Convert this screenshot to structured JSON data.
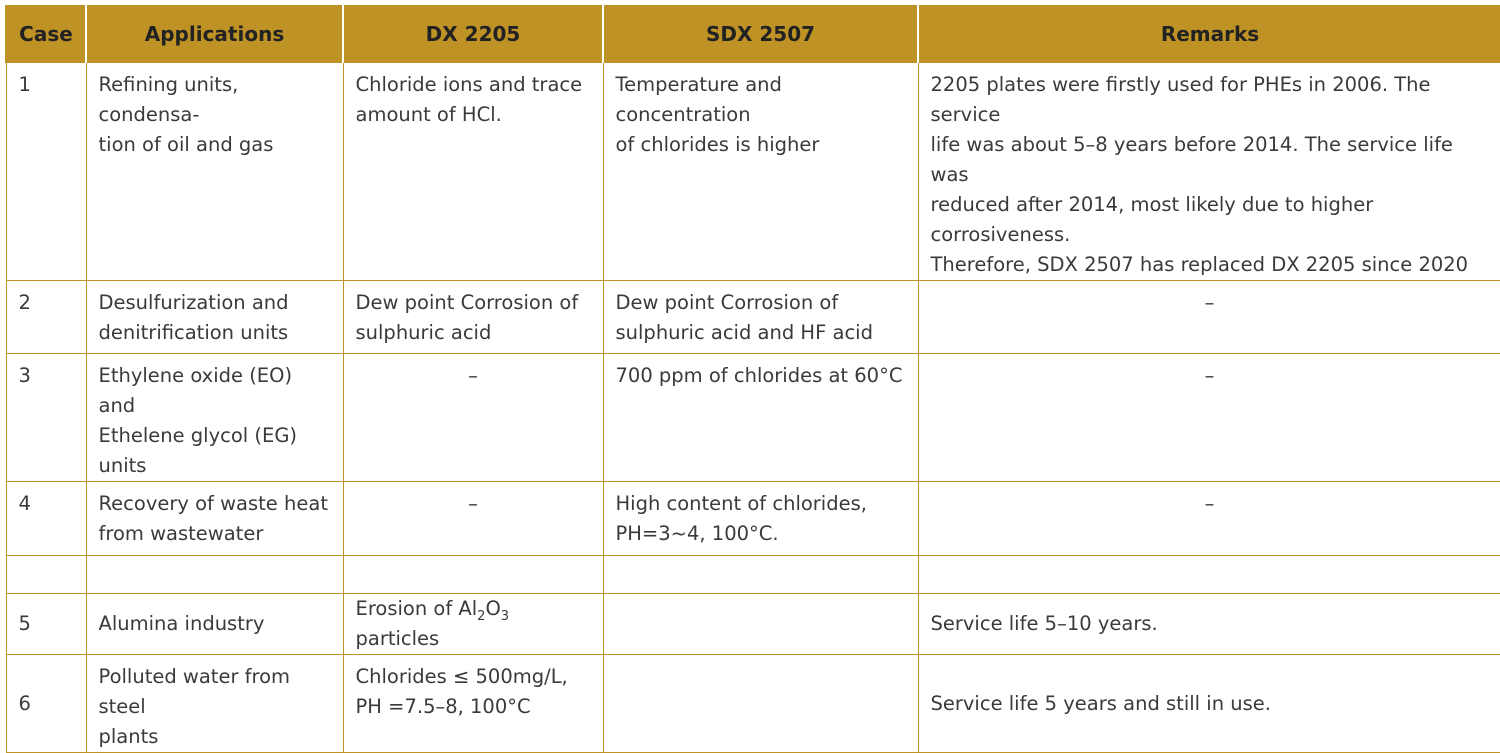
{
  "table": {
    "headers": {
      "case": "Case",
      "applications": "Applications",
      "dx2205": "DX 2205",
      "sdx2507": "SDX 2507",
      "remarks": "Remarks"
    },
    "rows": [
      {
        "case": "1",
        "app_l1": "Refining units, condensa-",
        "app_l2": "tion of oil and gas",
        "dx_l1": "Chloride ions and trace",
        "dx_l2": "amount of HCl.",
        "sdx_l1": "Temperature and concentration",
        "sdx_l2": "of chlorides is higher",
        "rem_l1": "2205 plates were firstly used for PHEs in 2006. The service",
        "rem_l2": "life was about 5–8 years before 2014. The service life was",
        "rem_l3": "reduced after 2014, most likely due to higher corrosiveness.",
        "rem_l4": "Therefore, SDX 2507 has replaced DX 2205 since 2020"
      },
      {
        "case": "2",
        "app_l1": "Desulfurization and",
        "app_l2": "denitrification units",
        "dx_l1": "Dew point Corrosion of",
        "dx_l2": "sulphuric acid",
        "sdx_l1": "Dew point Corrosion of",
        "sdx_l2": "sulphuric acid and HF acid",
        "rem": "–"
      },
      {
        "case": "3",
        "app_l1": "Ethylene oxide (EO) and",
        "app_l2": "Ethelene glycol (EG) units",
        "dx": "–",
        "sdx": "700 ppm of chlorides at 60°C",
        "rem": "–"
      },
      {
        "case": "4",
        "app_l1": "Recovery of waste heat",
        "app_l2": "from wastewater",
        "dx": "–",
        "sdx_l1": "High content of chlorides,",
        "sdx_l2": "PH=3~4, 100°C.",
        "rem": "–"
      },
      {
        "case": "5",
        "app": "Alumina industry",
        "dx_pre": "Erosion of Al",
        "dx_sub1": "2",
        "dx_mid": "O",
        "dx_sub2": "3",
        "dx_post": " particles",
        "sdx": "",
        "rem": "Service life 5–10 years."
      },
      {
        "case": "6",
        "app_l1": "Polluted water from steel",
        "app_l2": "plants",
        "dx_l1": "Chlorides ≤ 500mg/L,",
        "dx_l2": "PH =7.5–8, 100°C",
        "sdx": "",
        "rem": "Service life 5 years and still in use."
      }
    ]
  }
}
